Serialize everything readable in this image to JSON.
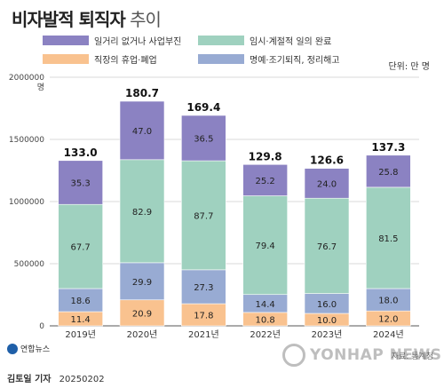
{
  "header": {
    "title_main": "비자발적 퇴직자",
    "title_sub": "추이"
  },
  "legend": [
    {
      "name": "일거리 없거나 사업부진",
      "color": "#8b82c2"
    },
    {
      "name": "임시·계절적 일의 완료",
      "color": "#9fd1bf"
    },
    {
      "name": "직장의 휴업·폐업",
      "color": "#f9c28f"
    },
    {
      "name": "명예·조기퇴직, 정리해고",
      "color": "#98abd3"
    }
  ],
  "unit_label": "단위: 만 명",
  "chart_data": {
    "type": "bar",
    "stacked": true,
    "categories": [
      "2019년",
      "2020년",
      "2021년",
      "2022년",
      "2023년",
      "2024년"
    ],
    "series": [
      {
        "name": "직장의 휴업·폐업",
        "color": "#f9c28f",
        "values": [
          11.4,
          20.9,
          17.8,
          10.8,
          10.0,
          12.0
        ]
      },
      {
        "name": "명예·조기퇴직, 정리해고",
        "color": "#98abd3",
        "values": [
          18.6,
          29.9,
          27.3,
          14.4,
          16.0,
          18.0
        ]
      },
      {
        "name": "임시·계절적 일의 완료",
        "color": "#9fd1bf",
        "values": [
          67.7,
          82.9,
          87.7,
          79.4,
          76.7,
          81.5
        ]
      },
      {
        "name": "일거리 없거나 사업부진",
        "color": "#8b82c2",
        "values": [
          35.3,
          47.0,
          36.5,
          25.2,
          24.0,
          25.8
        ]
      }
    ],
    "totals": [
      "133.0",
      "180.7",
      "169.4",
      "129.8",
      "126.6",
      "137.3"
    ],
    "yticks": [
      "0",
      "500000",
      "1000000",
      "1500000",
      "2000000"
    ],
    "ylim": [
      0,
      2000000
    ],
    "ytick_unit": "명",
    "grid": true
  },
  "footer": {
    "logo_text": "연합뉴스",
    "source": "자료: 통계청",
    "watermark": "YONHAP NEWS",
    "reporter": "김토일 기자",
    "date": "20250202"
  }
}
